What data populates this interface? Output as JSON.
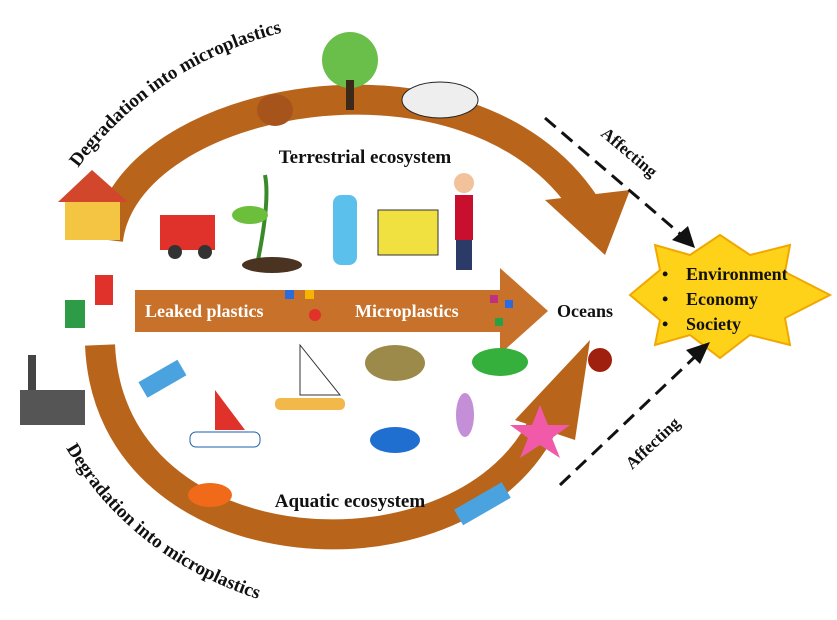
{
  "diagram": {
    "degradation_top": "Degradation into microplastics",
    "terrestrial": "Terrestrial ecosystem",
    "affecting_top": "Affecting",
    "leaked": "Leaked plastics",
    "microplastics": "Microplastics",
    "oceans": "Oceans",
    "impacts": [
      "Environment",
      "Economy",
      "Society"
    ],
    "affecting_bottom": "Affecting",
    "aquatic": "Aquatic ecosystem",
    "degradation_bottom": "Degradation into microplastics"
  }
}
